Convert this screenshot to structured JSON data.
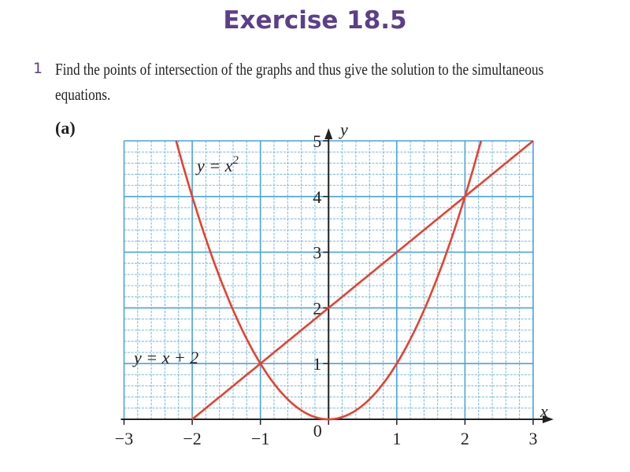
{
  "title": "Exercise 18.5",
  "question": {
    "number": "1",
    "text": "Find the points of intersection of the graphs and thus give the solution to the simultaneous equations.",
    "part": "(a)"
  },
  "chart_data": {
    "type": "line",
    "xlabel": "x",
    "ylabel": "y",
    "xlim": [
      -3,
      3
    ],
    "ylim": [
      0,
      5
    ],
    "x_ticks": [
      "−3",
      "−2",
      "−1",
      "0",
      "1",
      "2",
      "3"
    ],
    "y_ticks": [
      "1",
      "2",
      "3",
      "4",
      "5"
    ],
    "grid": true,
    "grid_minor_step": 0.2,
    "colors": {
      "grid": "#4aa3df",
      "curve": "#e8412c",
      "title": "#5b3f8c"
    },
    "series": [
      {
        "name": "y = x²",
        "label_main": "y = x",
        "label_sup": "2",
        "expr": "x^2",
        "x_range": [
          -2.236,
          2.236
        ]
      },
      {
        "name": "y = x + 2",
        "label_main": "y = x + 2",
        "expr": "x+2",
        "x_range": [
          -2,
          3
        ]
      }
    ],
    "intersections": [
      [
        -1,
        1
      ],
      [
        2,
        4
      ]
    ]
  }
}
